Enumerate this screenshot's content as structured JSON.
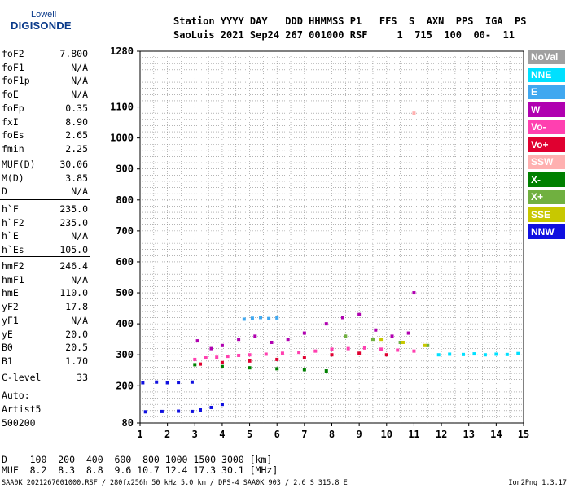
{
  "logo": {
    "line1": "Lowell",
    "line2": "DIGISONDE"
  },
  "header": {
    "labels": "Station YYYY DAY   DDD HHMMSS P1   FFS  S  AXN  PPS  IGA  PS",
    "values": "SaoLuis 2021 Sep24 267 001000 RSF     1  715  100  00-  11"
  },
  "params": [
    [
      {
        "name": "foF2",
        "value": "7.800"
      },
      {
        "name": "foF1",
        "value": "N/A"
      },
      {
        "name": "foF1p",
        "value": "N/A"
      },
      {
        "name": "foE",
        "value": "N/A"
      },
      {
        "name": "foEp",
        "value": "0.35"
      },
      {
        "name": "fxI",
        "value": "8.90"
      },
      {
        "name": "foEs",
        "value": "2.65"
      },
      {
        "name": "fmin",
        "value": "2.25"
      }
    ],
    [
      {
        "name": "MUF(D)",
        "value": "30.06"
      },
      {
        "name": "M(D)",
        "value": "3.85"
      },
      {
        "name": "D",
        "value": "N/A"
      }
    ],
    [
      {
        "name": "h`F",
        "value": "235.0"
      },
      {
        "name": "h`F2",
        "value": "235.0"
      },
      {
        "name": "h`E",
        "value": "N/A"
      },
      {
        "name": "h`Es",
        "value": "105.0"
      }
    ],
    [
      {
        "name": "hmF2",
        "value": "246.4"
      },
      {
        "name": "hmF1",
        "value": "N/A"
      },
      {
        "name": "hmE",
        "value": "110.0"
      },
      {
        "name": "yF2",
        "value": "17.8"
      },
      {
        "name": "yF1",
        "value": "N/A"
      },
      {
        "name": "yE",
        "value": "20.0"
      },
      {
        "name": "B0",
        "value": "20.5"
      },
      {
        "name": "B1",
        "value": "1.70"
      }
    ],
    [
      {
        "name": "C-level",
        "value": "33"
      }
    ]
  ],
  "auto": {
    "line1": "Auto:",
    "line2": "Artist5",
    "line3": "500200"
  },
  "legend": [
    {
      "label": "NoVal",
      "color": "#a0a0a0"
    },
    {
      "label": "NNE",
      "color": "#00e0ff"
    },
    {
      "label": "E",
      "color": "#40a8f0"
    },
    {
      "label": "W",
      "color": "#b000b0"
    },
    {
      "label": "Vo-",
      "color": "#ff40b0"
    },
    {
      "label": "Vo+",
      "color": "#e00030"
    },
    {
      "label": "SSW",
      "color": "#ffb0b0"
    },
    {
      "label": "X-",
      "color": "#008000"
    },
    {
      "label": "X+",
      "color": "#70b040"
    },
    {
      "label": "SSE",
      "color": "#c8c800"
    },
    {
      "label": "NNW",
      "color": "#1010e0"
    }
  ],
  "footer": {
    "d_line": "D    100  200  400  600  800 1000 1500 3000 [km]",
    "muf_line": "MUF  8.2  8.3  8.8  9.6 10.7 12.4 17.3 30.1 [MHz]",
    "file_line": "SAA0K_2021267001000.RSF / 280fx256h 50 kHz 5.0 km / DPS-4 SAA0K 903 / 2.6 S 315.8 E",
    "version": "Ion2Png 1.3.17"
  },
  "chart_data": {
    "type": "scatter",
    "x_ticks": [
      "1",
      "2",
      "3",
      "4",
      "5",
      "6",
      "7",
      "8",
      "9",
      "10",
      "11",
      "12",
      "13",
      "14",
      "15"
    ],
    "y_ticks": [
      "80",
      "200",
      "300",
      "400",
      "500",
      "600",
      "700",
      "800",
      "900",
      "1000",
      "1100",
      "1280"
    ],
    "x_range": [
      1,
      15
    ],
    "y_range": [
      80,
      1280
    ],
    "grid": true,
    "legend_position": "right",
    "series": [
      {
        "name": "NNE",
        "points": [
          [
            11.9,
            300
          ],
          [
            12.3,
            302
          ],
          [
            12.8,
            301
          ],
          [
            13.2,
            303
          ],
          [
            13.6,
            300
          ],
          [
            14.0,
            302
          ],
          [
            14.4,
            301
          ],
          [
            14.8,
            304
          ]
        ]
      },
      {
        "name": "E",
        "points": [
          [
            4.8,
            415
          ],
          [
            5.1,
            418
          ],
          [
            5.4,
            420
          ],
          [
            5.7,
            417
          ],
          [
            6.0,
            419
          ]
        ]
      },
      {
        "name": "W",
        "points": [
          [
            3.1,
            345
          ],
          [
            3.6,
            320
          ],
          [
            4.0,
            330
          ],
          [
            4.6,
            350
          ],
          [
            5.2,
            360
          ],
          [
            5.8,
            340
          ],
          [
            6.4,
            350
          ],
          [
            7.0,
            370
          ],
          [
            7.8,
            400
          ],
          [
            8.4,
            420
          ],
          [
            9.0,
            430
          ],
          [
            9.6,
            380
          ],
          [
            10.2,
            360
          ],
          [
            10.8,
            370
          ],
          [
            11.0,
            500
          ]
        ]
      },
      {
        "name": "Vo-",
        "points": [
          [
            3.0,
            285
          ],
          [
            3.4,
            290
          ],
          [
            3.8,
            292
          ],
          [
            4.2,
            295
          ],
          [
            4.6,
            298
          ],
          [
            5.0,
            300
          ],
          [
            5.6,
            302
          ],
          [
            6.2,
            305
          ],
          [
            6.8,
            308
          ],
          [
            7.4,
            312
          ],
          [
            8.0,
            318
          ],
          [
            8.6,
            320
          ],
          [
            9.2,
            322
          ],
          [
            9.8,
            318
          ],
          [
            10.4,
            315
          ],
          [
            11.0,
            312
          ]
        ]
      },
      {
        "name": "Vo+",
        "points": [
          [
            3.2,
            270
          ],
          [
            4.0,
            275
          ],
          [
            5.0,
            280
          ],
          [
            6.0,
            285
          ],
          [
            7.0,
            290
          ],
          [
            8.0,
            300
          ],
          [
            9.0,
            305
          ],
          [
            10.0,
            300
          ]
        ]
      },
      {
        "name": "SSW",
        "points": [
          [
            11.0,
            1080
          ]
        ]
      },
      {
        "name": "X-",
        "points": [
          [
            3.0,
            268
          ],
          [
            4.0,
            262
          ],
          [
            5.0,
            258
          ],
          [
            6.0,
            255
          ],
          [
            7.0,
            252
          ],
          [
            7.8,
            248
          ]
        ]
      },
      {
        "name": "X+",
        "points": [
          [
            8.5,
            360
          ],
          [
            9.5,
            350
          ],
          [
            10.5,
            340
          ],
          [
            11.5,
            330
          ]
        ]
      },
      {
        "name": "SSE",
        "points": [
          [
            9.8,
            350
          ],
          [
            10.6,
            340
          ],
          [
            11.4,
            330
          ]
        ]
      },
      {
        "name": "NNW",
        "points": [
          [
            1.1,
            210
          ],
          [
            1.6,
            212
          ],
          [
            2.0,
            210
          ],
          [
            2.4,
            211
          ],
          [
            2.9,
            212
          ],
          [
            1.2,
            116
          ],
          [
            1.8,
            117
          ],
          [
            2.4,
            118
          ],
          [
            2.9,
            117
          ],
          [
            3.2,
            122
          ],
          [
            3.6,
            130
          ],
          [
            4.0,
            140
          ]
        ]
      }
    ]
  }
}
